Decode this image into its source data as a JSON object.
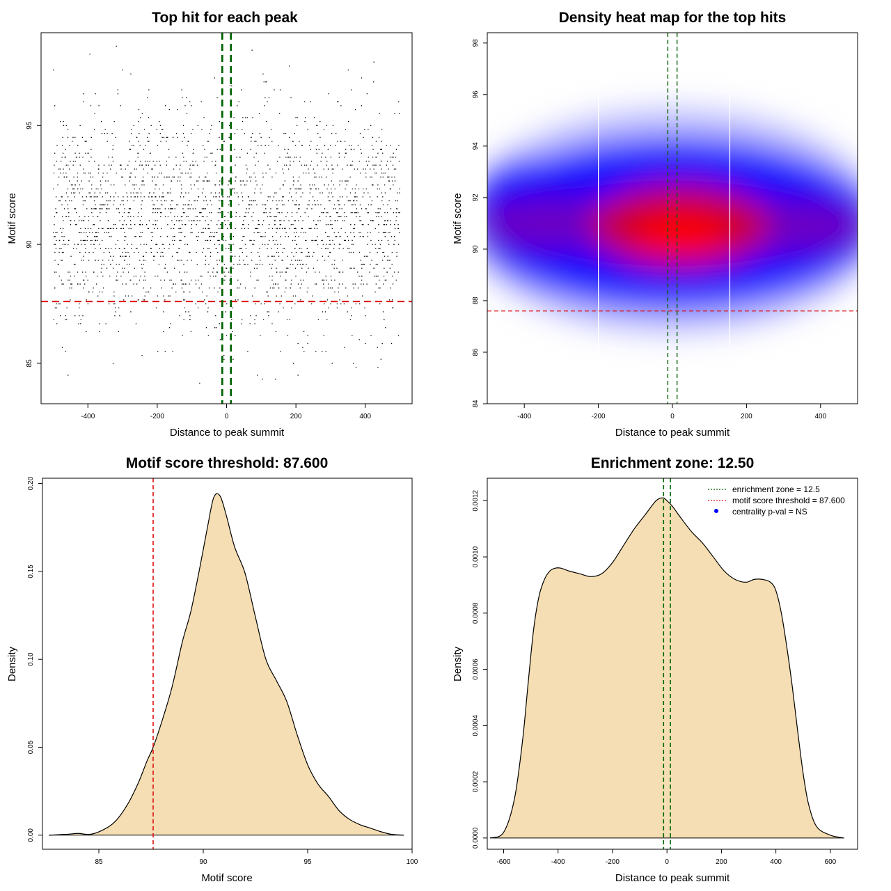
{
  "chart_data": [
    {
      "type": "scatter",
      "title": "Top hit for each peak",
      "xlabel": "Distance to peak summit",
      "ylabel": "Motif score",
      "xlim": [
        -535,
        535
      ],
      "ylim": [
        83.3,
        98.9
      ],
      "xticks": [
        "-400",
        "-200",
        "0",
        "200",
        "400"
      ],
      "yticks": [
        "85",
        "90",
        "95"
      ],
      "points_note": "approx. 2500 points; x uniformly spread over [-500, 500]; y roughly normal around 91 (sd 2.3)",
      "point_count": 2500,
      "x_range": [
        -500,
        500
      ],
      "y_center": 91,
      "y_sd": 2.3,
      "threshold_line": {
        "axis": "y",
        "value": 87.6,
        "color": "#e01010"
      },
      "zone_lines": {
        "axis": "x",
        "values": [
          -12.5,
          12.5
        ],
        "color": "#006400"
      }
    },
    {
      "type": "heatmap",
      "title": "Density heat map for the top hits",
      "xlabel": "Distance to peak summit",
      "ylabel": "Motif score",
      "xlim": [
        -500,
        500
      ],
      "ylim": [
        84,
        98.4
      ],
      "xticks": [
        "-400",
        "-200",
        "0",
        "200",
        "400"
      ],
      "yticks": [
        "84",
        "86",
        "88",
        "90",
        "92",
        "94",
        "96",
        "98"
      ],
      "colors": [
        "#ffffff",
        "#0000ff",
        "#ff0000"
      ],
      "density_peak": {
        "x": 20,
        "y": 90.6
      },
      "white_lines_x": [
        -200,
        155
      ],
      "threshold_line": {
        "axis": "y",
        "value": 87.6,
        "color": "#e01010"
      },
      "zone_lines": {
        "axis": "x",
        "values": [
          -12.5,
          12.5
        ],
        "color": "#006400"
      }
    },
    {
      "type": "area",
      "title": "Motif score threshold: 87.600",
      "xlabel": "Motif score",
      "ylabel": "Density",
      "xlim": [
        82.3,
        100
      ],
      "ylim": [
        -0.008,
        0.203
      ],
      "xticks": [
        "85",
        "90",
        "95",
        "100"
      ],
      "yticks": [
        "0.00",
        "0.05",
        "0.10",
        "0.15",
        "0.20"
      ],
      "fill": "#f5deb3",
      "x": [
        82.6,
        83.5,
        84.0,
        84.6,
        85.2,
        85.8,
        86.4,
        86.9,
        87.3,
        87.6,
        88.0,
        88.5,
        89.0,
        89.4,
        89.8,
        90.2,
        90.5,
        90.8,
        91.1,
        91.5,
        92.0,
        92.5,
        93.0,
        93.5,
        94.0,
        94.5,
        95.0,
        95.5,
        96.0,
        96.5,
        97.0,
        97.5,
        98.0,
        98.5,
        99.0,
        99.6
      ],
      "y": [
        0.0,
        0.0005,
        0.001,
        0.0005,
        0.003,
        0.008,
        0.018,
        0.03,
        0.042,
        0.05,
        0.064,
        0.084,
        0.11,
        0.127,
        0.15,
        0.175,
        0.192,
        0.193,
        0.182,
        0.164,
        0.149,
        0.124,
        0.1,
        0.088,
        0.076,
        0.057,
        0.04,
        0.029,
        0.022,
        0.014,
        0.009,
        0.006,
        0.004,
        0.002,
        0.0005,
        0.0
      ],
      "threshold_line": {
        "axis": "x",
        "value": 87.6,
        "color": "#e01010"
      }
    },
    {
      "type": "area",
      "title": "Enrichment zone: 12.50",
      "xlabel": "Distance to peak summit",
      "ylabel": "Density",
      "xlim": [
        -660,
        700
      ],
      "ylim": [
        -4e-05,
        0.00128
      ],
      "xticks": [
        "-600",
        "-400",
        "-200",
        "0",
        "200",
        "400",
        "600"
      ],
      "yticks": [
        "0.0000",
        "0.0002",
        "0.0004",
        "0.0006",
        "0.0008",
        "0.0010",
        "0.0012"
      ],
      "fill": "#f5deb3",
      "x": [
        -650,
        -600,
        -560,
        -530,
        -510,
        -490,
        -470,
        -450,
        -430,
        -410,
        -390,
        -360,
        -320,
        -280,
        -240,
        -200,
        -160,
        -120,
        -80,
        -40,
        -15,
        0,
        20,
        50,
        90,
        130,
        170,
        210,
        250,
        290,
        320,
        350,
        380,
        400,
        420,
        440,
        460,
        480,
        500,
        520,
        550,
        600,
        650
      ],
      "y": [
        0.0,
        2e-05,
        0.00014,
        0.00035,
        0.00055,
        0.00074,
        0.00086,
        0.00092,
        0.00095,
        0.00096,
        0.00096,
        0.00095,
        0.00094,
        0.00093,
        0.00094,
        0.00098,
        0.00104,
        0.0011,
        0.00115,
        0.0012,
        0.00121,
        0.0012,
        0.00118,
        0.00114,
        0.00109,
        0.00105,
        0.001,
        0.00095,
        0.00092,
        0.00091,
        0.00092,
        0.00092,
        0.00091,
        0.00088,
        0.0008,
        0.00068,
        0.00054,
        0.00038,
        0.00023,
        0.00012,
        4e-05,
        1e-05,
        0.0
      ],
      "zone_lines": {
        "axis": "x",
        "values": [
          -12.5,
          12.5
        ],
        "color": "#006400"
      },
      "legend": {
        "placement": "top-right",
        "entries": [
          {
            "label": "enrichment zone = 12.5",
            "color": "#006400",
            "style": "dotted"
          },
          {
            "label": "motif score threshold = 87.600",
            "color": "#e01010",
            "style": "dotted"
          },
          {
            "label": "centrality p-val = NS",
            "color": "#0000ff",
            "style": "point"
          }
        ]
      }
    }
  ]
}
